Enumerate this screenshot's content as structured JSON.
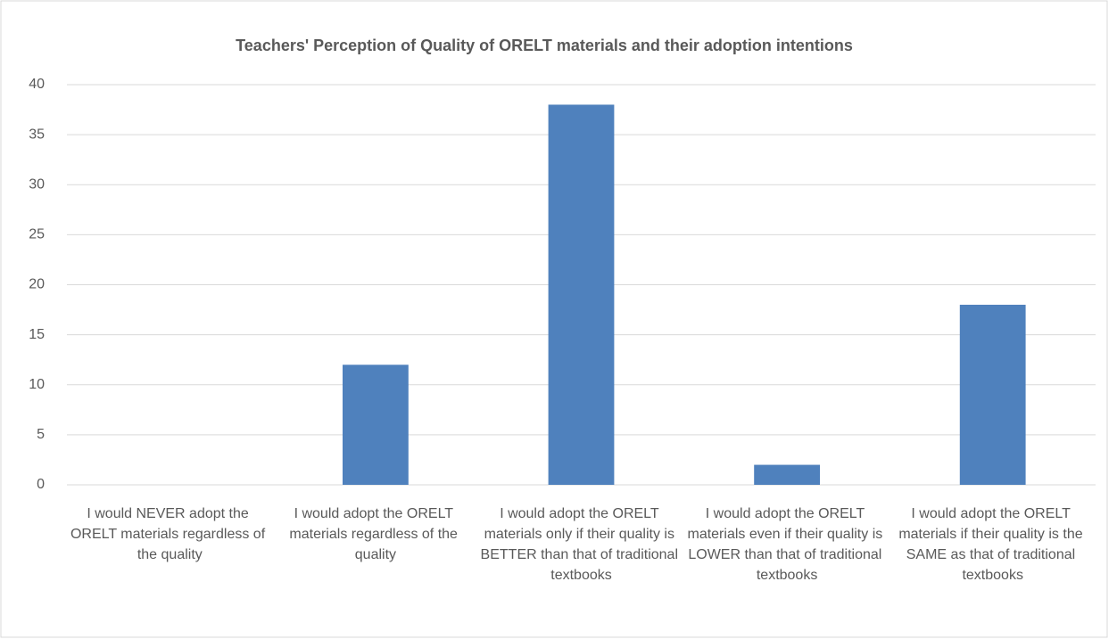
{
  "chart_data": {
    "type": "bar",
    "title": "Teachers' Perception of Quality of ORELT materials and their adoption intentions",
    "categories": [
      "I would NEVER adopt the ORELT materials regardless of the quality",
      "I would adopt the ORELT materials regardless of the quality",
      "I would adopt the ORELT materials only if their quality is BETTER than that of traditional textbooks",
      "I would adopt the ORELT materials even if their quality is LOWER than that of traditional textbooks",
      "I would adopt the ORELT materials if their quality is the SAME as that of traditional textbooks"
    ],
    "values": [
      0,
      12,
      38,
      2,
      18
    ],
    "color": "#4f81bd",
    "ylim": [
      0,
      40
    ],
    "yticks": [
      0,
      5,
      10,
      15,
      20,
      25,
      30,
      35,
      40
    ],
    "grid": true
  }
}
